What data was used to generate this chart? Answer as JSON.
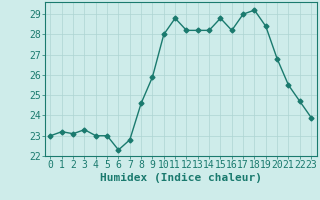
{
  "x": [
    0,
    1,
    2,
    3,
    4,
    5,
    6,
    7,
    8,
    9,
    10,
    11,
    12,
    13,
    14,
    15,
    16,
    17,
    18,
    19,
    20,
    21,
    22,
    23
  ],
  "y": [
    23.0,
    23.2,
    23.1,
    23.3,
    23.0,
    23.0,
    22.3,
    22.8,
    24.6,
    25.9,
    28.0,
    28.8,
    28.2,
    28.2,
    28.2,
    28.8,
    28.2,
    29.0,
    29.2,
    28.4,
    26.8,
    25.5,
    24.7,
    23.9
  ],
  "line_color": "#1a7a6e",
  "marker": "D",
  "markersize": 2.5,
  "bg_color": "#ceecea",
  "grid_color": "#aed4d2",
  "xlabel": "Humidex (Indice chaleur)",
  "ylim": [
    22,
    29.6
  ],
  "xlim": [
    -0.5,
    23.5
  ],
  "yticks": [
    22,
    23,
    24,
    25,
    26,
    27,
    28,
    29
  ],
  "xticks": [
    0,
    1,
    2,
    3,
    4,
    5,
    6,
    7,
    8,
    9,
    10,
    11,
    12,
    13,
    14,
    15,
    16,
    17,
    18,
    19,
    20,
    21,
    22,
    23
  ],
  "tick_color": "#1a7a6e",
  "label_color": "#1a7a6e",
  "font_size": 7,
  "xlabel_fontsize": 8,
  "linewidth": 1.0
}
